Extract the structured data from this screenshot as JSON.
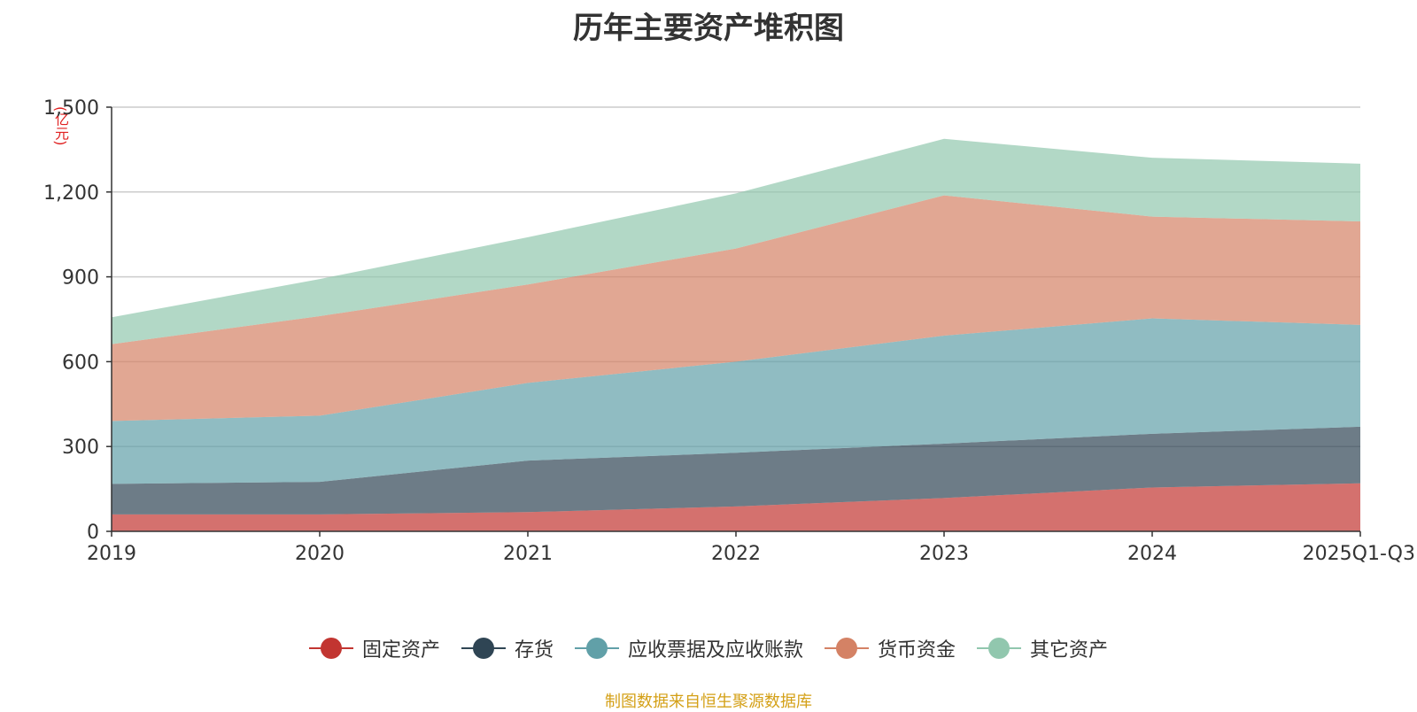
{
  "chart_data": {
    "type": "area",
    "stacked": true,
    "title": "历年主要资产堆积图",
    "ylabel": "(亿元)",
    "xlabel": "",
    "categories": [
      "2019",
      "2020",
      "2021",
      "2022",
      "2023",
      "2024",
      "2025Q1-Q3"
    ],
    "ylim": [
      0,
      1500
    ],
    "yticks": [
      0,
      300,
      600,
      900,
      1200,
      1500
    ],
    "ytick_labels": [
      "0",
      "300",
      "600",
      "900",
      "1,200",
      "1,500"
    ],
    "grid": true,
    "legend_position": "bottom-center",
    "series": [
      {
        "name": "固定资产",
        "color": "#c23531",
        "values": [
          60,
          60,
          68,
          88,
          118,
          155,
          170
        ]
      },
      {
        "name": "存货",
        "color": "#2f4554",
        "values": [
          108,
          115,
          182,
          190,
          192,
          190,
          200
        ]
      },
      {
        "name": "应收票据及应收账款",
        "color": "#61a0a8",
        "values": [
          222,
          234,
          275,
          322,
          382,
          408,
          360
        ]
      },
      {
        "name": "货币资金",
        "color": "#d48265",
        "values": [
          272,
          352,
          348,
          400,
          496,
          360,
          366
        ]
      },
      {
        "name": "其它资产",
        "color": "#91c7ae",
        "values": [
          95,
          131,
          167,
          195,
          200,
          208,
          204
        ]
      }
    ]
  },
  "footer": {
    "source": "制图数据来自恒生聚源数据库"
  }
}
